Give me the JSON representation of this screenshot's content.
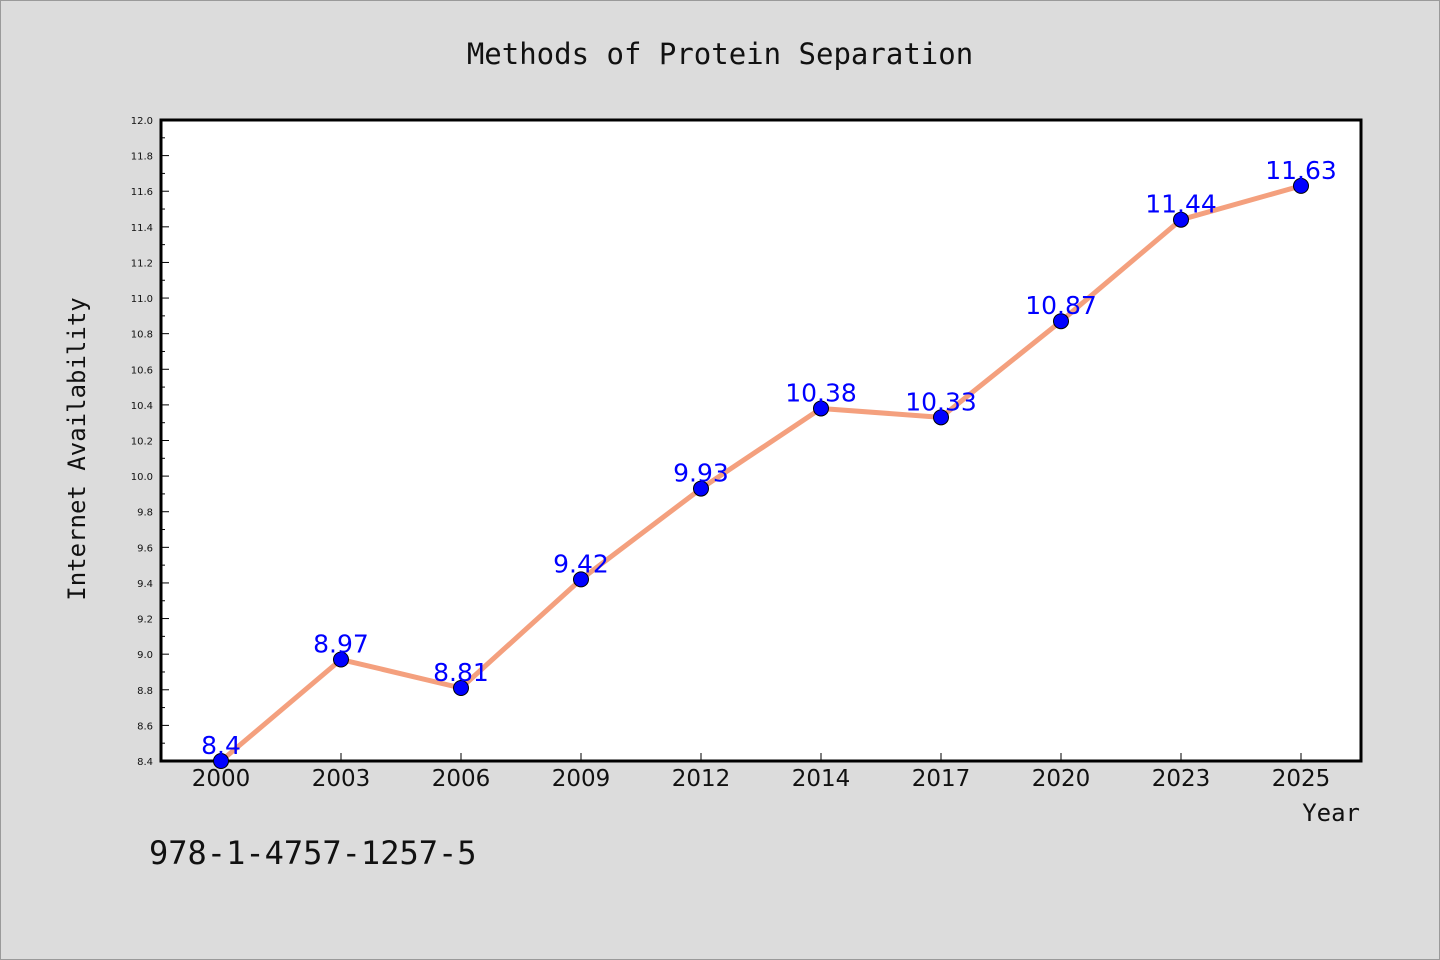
{
  "chart_data": {
    "type": "line",
    "title": "Methods of Protein Separation",
    "xlabel": "Year",
    "ylabel": "Internet Availability",
    "categories": [
      "2000",
      "2003",
      "2006",
      "2009",
      "2012",
      "2014",
      "2017",
      "2020",
      "2023",
      "2025"
    ],
    "series": [
      {
        "values": [
          8.4,
          8.97,
          8.81,
          9.42,
          9.93,
          10.38,
          10.33,
          10.87,
          11.44,
          11.63
        ],
        "labels": [
          "8.4",
          "8.97",
          "8.81",
          "9.42",
          "9.93",
          "10.38",
          "10.33",
          "10.87",
          "11.44",
          "11.63"
        ],
        "line_color": "#f4a07e",
        "marker_color": "#0000ff"
      }
    ],
    "ylim": [
      8.4,
      12.0
    ],
    "y_ticks": [
      "8.4",
      "8.6",
      "8.8",
      "9.0",
      "9.2",
      "9.4",
      "9.6",
      "9.8",
      "10.0",
      "10.2",
      "10.4",
      "10.6",
      "10.8",
      "11.0",
      "11.2",
      "11.4",
      "11.6",
      "11.8",
      "12.0"
    ],
    "grid": false,
    "legend": "none"
  },
  "footer": {
    "isbn": "978-1-4757-1257-5"
  },
  "colors": {
    "background": "#dcdcdc",
    "plot_area": "#ffffff",
    "label_color": "#0000ff"
  }
}
